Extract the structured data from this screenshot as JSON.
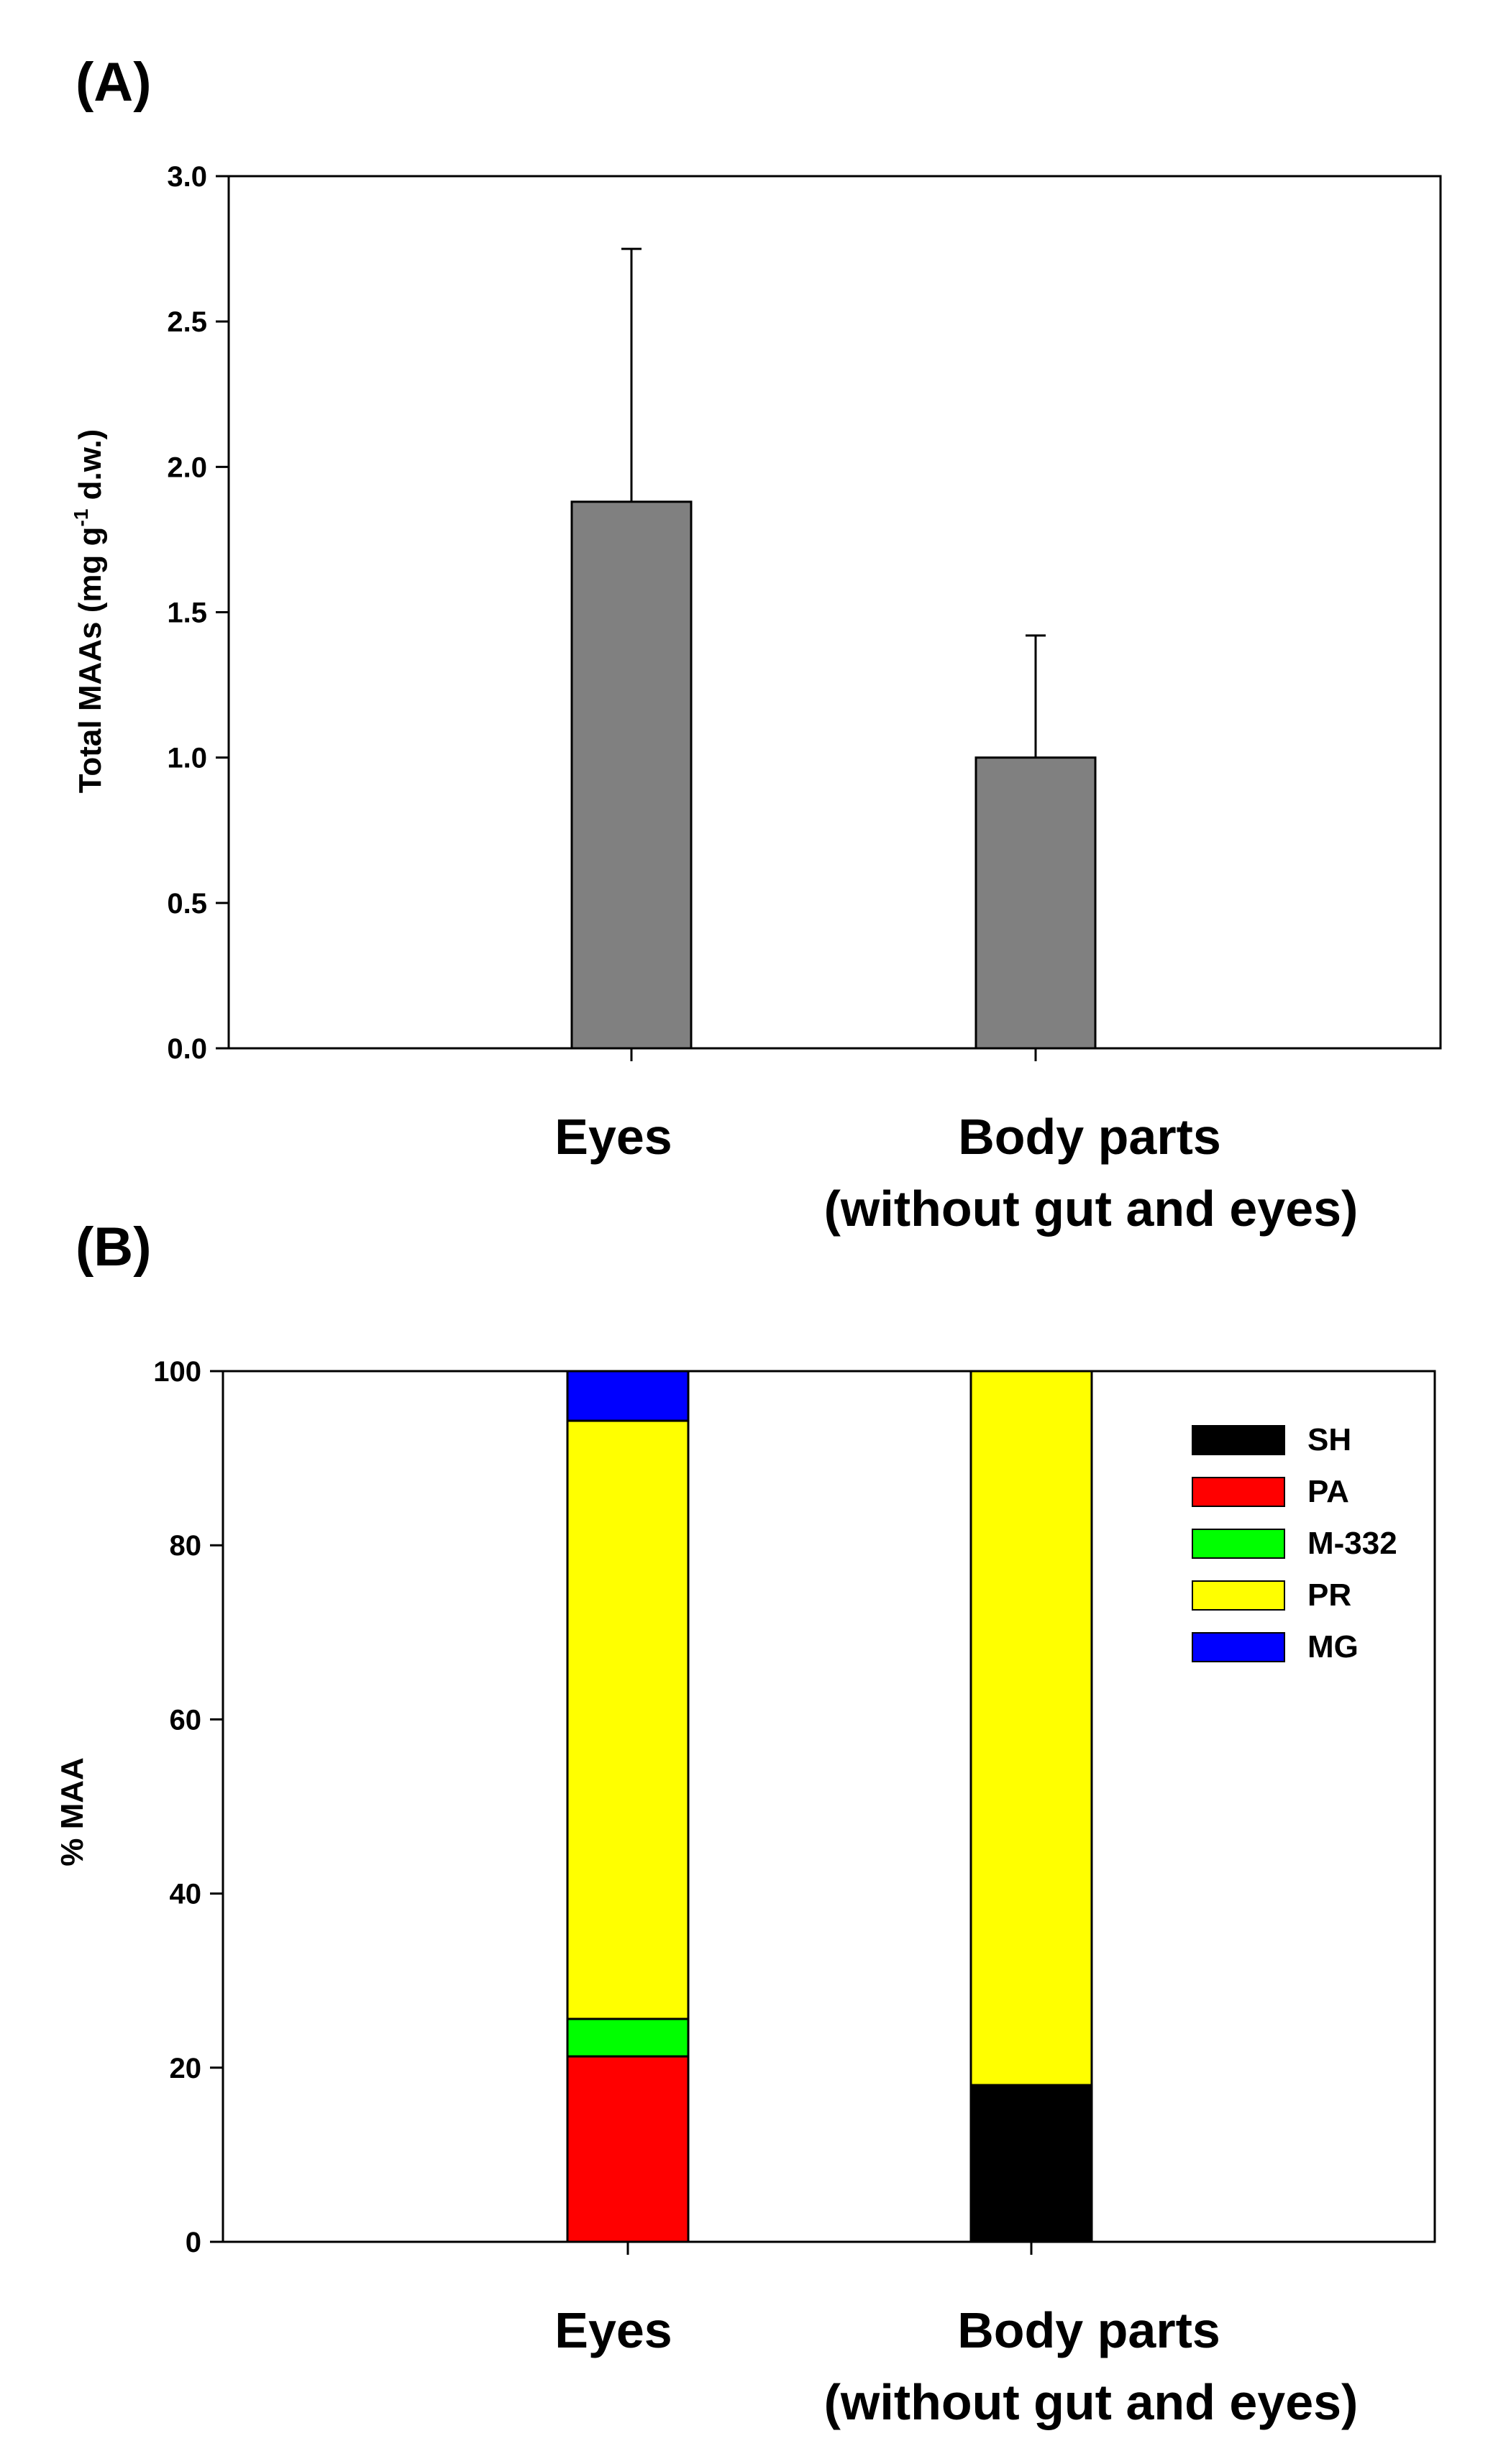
{
  "chart_data": [
    {
      "panel": "(A)",
      "type": "bar",
      "ylabel_prefix": "Total MAAs (mg g",
      "ylabel_sup": "-1",
      "ylabel_suffix": " d.w.)",
      "ylim": [
        0,
        3.0
      ],
      "yticks": [
        "0.0",
        "0.5",
        "1.0",
        "1.5",
        "2.0",
        "2.5",
        "3.0"
      ],
      "categories": [
        {
          "line1": "Eyes",
          "line2": ""
        },
        {
          "line1": "Body parts",
          "line2": "(without gut and eyes)"
        }
      ],
      "values": [
        1.88,
        1.0
      ],
      "errors": [
        0.87,
        0.42
      ],
      "bar_color": "#808080"
    },
    {
      "panel": "(B)",
      "type": "stacked-bar",
      "ylabel": "% MAA",
      "ylim": [
        0,
        100
      ],
      "yticks": [
        "0",
        "20",
        "40",
        "60",
        "80",
        "100"
      ],
      "categories": [
        {
          "line1": "Eyes",
          "line2": ""
        },
        {
          "line1": "Body parts",
          "line2": "(without gut and eyes)"
        }
      ],
      "series": [
        {
          "name": "SH",
          "color": "#000000",
          "values": [
            0,
            18
          ]
        },
        {
          "name": "PA",
          "color": "#ff0000",
          "values": [
            21.3,
            0
          ]
        },
        {
          "name": "M-332",
          "color": "#00ff00",
          "values": [
            4.3,
            0
          ]
        },
        {
          "name": "PR",
          "color": "#ffff00",
          "values": [
            68.7,
            82
          ]
        },
        {
          "name": "MG",
          "color": "#0000ff",
          "values": [
            5.7,
            0
          ]
        }
      ],
      "legend_position": "top-right"
    }
  ]
}
